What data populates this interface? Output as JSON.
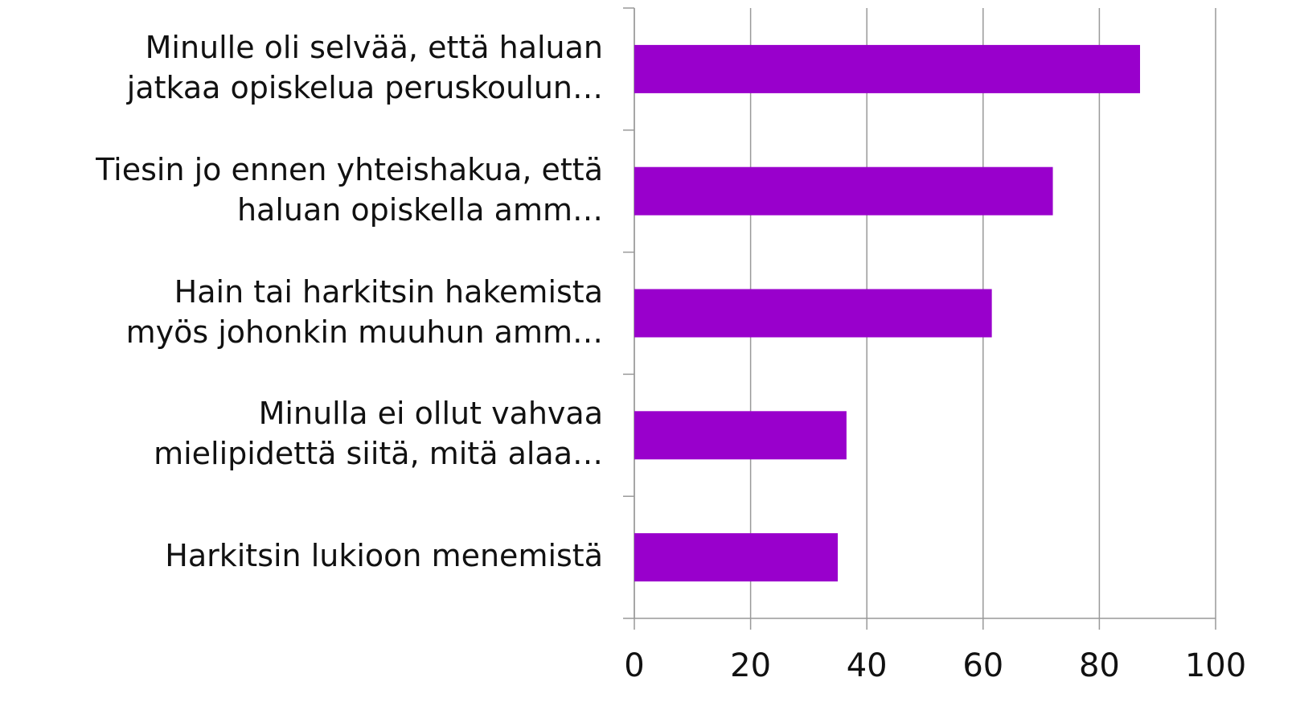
{
  "chart_data": {
    "type": "barh",
    "categories": [
      "Minulle oli selvää, että haluan\njatkaa opiskelua peruskoulun…",
      "Tiesin jo ennen yhteishakua, että\nhaluan opiskella amm…",
      "Hain tai harkitsin hakemista\nmyös johonkin muuhun amm…",
      "Minulla ei ollut vahvaa\nmielipidettä siitä, mitä alaa…",
      "Harkitsin lukioon menemistä"
    ],
    "values": [
      87,
      72,
      61.5,
      36.5,
      35
    ],
    "color": "#9900cc",
    "xlim": [
      0,
      100
    ],
    "xticks": [
      0,
      20,
      40,
      60,
      80,
      100
    ],
    "grid": true
  }
}
